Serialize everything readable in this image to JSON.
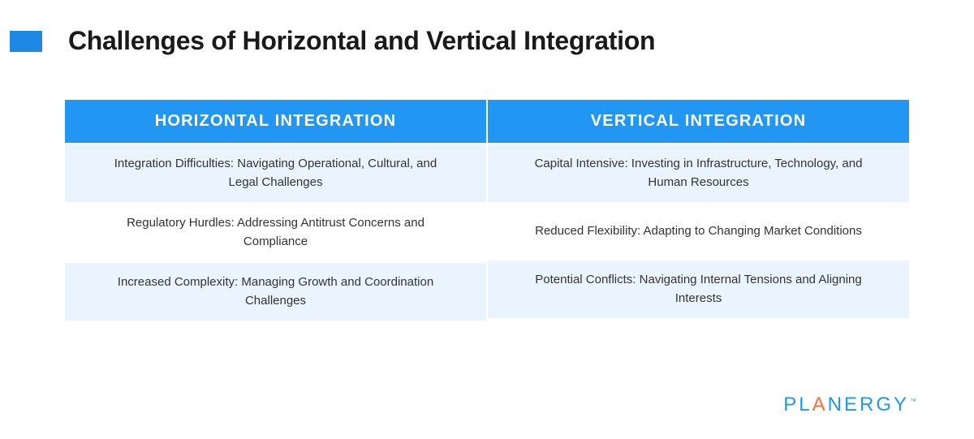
{
  "page_title": "Challenges of Horizontal and Vertical Integration",
  "accent_color": "#1e88e5",
  "header_bg_color": "#2196f3",
  "row_odd_bg_color": "#eaf4fe",
  "row_even_bg_color": "#ffffff",
  "text_color": "#333333",
  "title_color": "#1a1a1a",
  "table": {
    "columns": [
      {
        "header": "HORIZONTAL INTEGRATION",
        "rows": [
          "Integration Difficulties: Navigating Operational, Cultural, and Legal Challenges",
          "Regulatory Hurdles: Addressing Antitrust Concerns and Compliance",
          "Increased Complexity: Managing Growth and Coordination Challenges"
        ]
      },
      {
        "header": "VERTICAL INTEGRATION",
        "rows": [
          "Capital Intensive: Investing in Infrastructure, Technology, and Human Resources",
          "Reduced Flexibility: Adapting to Changing Market Conditions",
          "Potential Conflicts: Navigating Internal Tensions and Aligning Interests"
        ]
      }
    ]
  },
  "logo": {
    "text_parts": [
      "PL",
      "A",
      "NERGY"
    ],
    "primary_color": "#2196f3",
    "accent_color": "#ff6b35",
    "tm": "™"
  }
}
